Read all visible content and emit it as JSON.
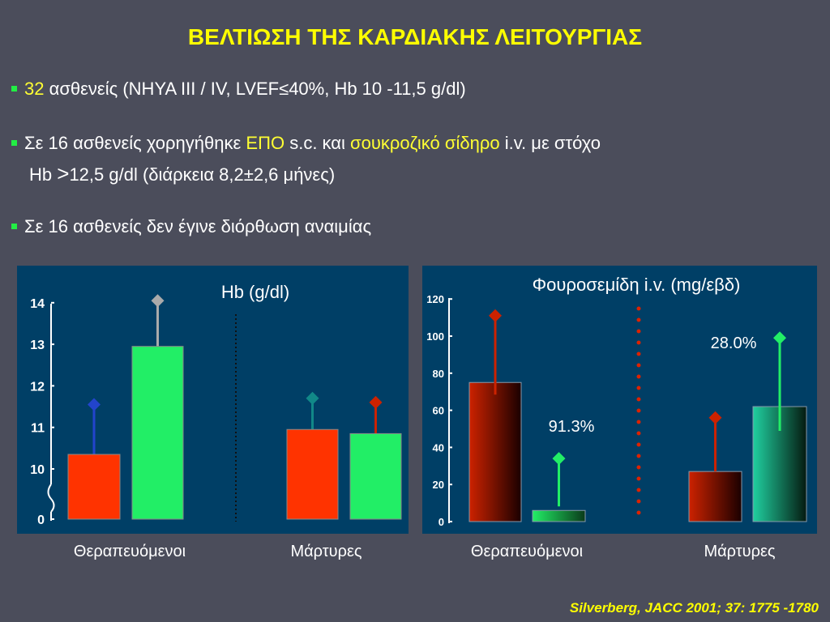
{
  "title": "ΒΕΛΤΙΩΣΗ ΤΗΣ ΚΑΡΔΙΑΚΗΣ ΛΕΙΤΟΥΡΓΙΑΣ",
  "bullets": {
    "b1": {
      "highlight": "32",
      "text": " ασθενείς (NHYA III / IV, LVEF≤40%, Hb 10 -11,5 g/dl)"
    },
    "b2": {
      "p1": "Σε 16 ασθενείς χορηγήθηκε ",
      "epo": "ΕΠΟ",
      "p2": " s.c. και ",
      "iron": "σουκροζικό σίδηρο",
      "p3": " i.v. με στόχο",
      "line2_a": "Hb ",
      "line2_gt": ">",
      "line2_b": "12,5 g/dl (διάρκεια 8,2±2,6 μήνες)"
    },
    "b3": {
      "text": "Σε 16 ασθενείς δεν έγινε διόρθωση αναιμίας"
    }
  },
  "group_labels": {
    "left_treated": "Θεραπευόμενοι",
    "left_controls": "Μάρτυρες",
    "right_treated": "Θεραπευόμενοι",
    "right_controls": "Μάρτυρες"
  },
  "citation": "Silverberg,  JACC 2001; 37: 1775 -1780",
  "colors": {
    "background": "#4b4d5b",
    "panel": "#003f66",
    "title": "#ffff00",
    "bullet": "#22ee44",
    "red": "#ff3300",
    "green": "#22ee66"
  },
  "chart_data": [
    {
      "type": "bar",
      "title": "Hb (g/dl)",
      "ylabel": "",
      "y_ticks": [
        "0",
        "10",
        "11",
        "12",
        "13",
        "14"
      ],
      "axis_break": [
        0,
        10
      ],
      "ylim": [
        10,
        14
      ],
      "groups": [
        "Θεραπευόμενοι",
        "Μάρτυρες"
      ],
      "bars": [
        {
          "group": "Θεραπευόμενοι",
          "value": 10.35,
          "error_top": 11.55,
          "color": "#ff3300",
          "marker_color": "#2244cc"
        },
        {
          "group": "Θεραπευόμενοι",
          "value": 12.95,
          "error_top": 14.05,
          "color": "#22ee66",
          "marker_color": "#aaaaaa"
        },
        {
          "group": "Μάρτυρες",
          "value": 10.95,
          "error_top": 11.7,
          "color": "#ff3300",
          "marker_color": "#118888"
        },
        {
          "group": "Μάρτυρες",
          "value": 10.85,
          "error_top": 11.6,
          "color": "#22ee66",
          "marker_color": "#cc2200"
        }
      ]
    },
    {
      "type": "bar",
      "title": "Φουροσεμίδη i.v. (mg/εβδ)",
      "ylabel": "",
      "y_ticks": [
        "0",
        "20",
        "40",
        "60",
        "80",
        "100",
        "120"
      ],
      "ylim": [
        0,
        120
      ],
      "groups": [
        "Θεραπευόμενοι",
        "Μάρτυρες"
      ],
      "bars": [
        {
          "group": "Θεραπευόμενοι",
          "value": 75,
          "error_top": 111,
          "color": "#aa1100",
          "marker_color": "#cc2200"
        },
        {
          "group": "Θεραπευόμενοι",
          "value": 6,
          "error_top": 34,
          "color": "#22ee66",
          "marker_color": "#22ee66"
        },
        {
          "group": "Μάρτυρες",
          "value": 27,
          "error_top": 56,
          "color": "#aa1100",
          "marker_color": "#cc2200"
        },
        {
          "group": "Μάρτυρες",
          "value": 62,
          "error_top": 99,
          "color": "#20c090",
          "marker_color": "#22ee66"
        }
      ],
      "annotations": [
        "91.3%",
        "28.0%"
      ]
    }
  ]
}
